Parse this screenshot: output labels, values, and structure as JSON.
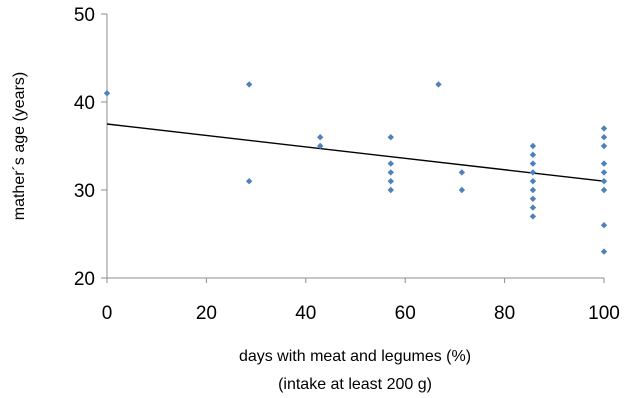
{
  "chart_data": {
    "type": "scatter",
    "title": "",
    "xlabel_line1": "days with meat and legumes (%)",
    "xlabel_line2": "(intake at least 200 g)",
    "ylabel": "mather´s age (years)",
    "xlim": [
      0,
      100
    ],
    "ylim": [
      20,
      50
    ],
    "x_ticks": [
      "0",
      "20",
      "40",
      "60",
      "80",
      "100"
    ],
    "y_ticks": [
      "20",
      "30",
      "40",
      "50"
    ],
    "grid": false,
    "legend": "none",
    "marker_color": "#4F81BD",
    "trendline_color": "#000000",
    "trendline": {
      "x": [
        0,
        100
      ],
      "y": [
        37.5,
        31
      ]
    },
    "points": [
      {
        "x": 0,
        "y": 41
      },
      {
        "x": 28.6,
        "y": 42
      },
      {
        "x": 28.6,
        "y": 31
      },
      {
        "x": 42.9,
        "y": 36
      },
      {
        "x": 42.9,
        "y": 35
      },
      {
        "x": 57.1,
        "y": 36
      },
      {
        "x": 57.1,
        "y": 33
      },
      {
        "x": 57.1,
        "y": 32
      },
      {
        "x": 57.1,
        "y": 31
      },
      {
        "x": 57.1,
        "y": 30
      },
      {
        "x": 66.7,
        "y": 42
      },
      {
        "x": 71.4,
        "y": 32
      },
      {
        "x": 71.4,
        "y": 30
      },
      {
        "x": 85.7,
        "y": 35
      },
      {
        "x": 85.7,
        "y": 34
      },
      {
        "x": 85.7,
        "y": 33
      },
      {
        "x": 85.7,
        "y": 32
      },
      {
        "x": 85.7,
        "y": 31
      },
      {
        "x": 85.7,
        "y": 30
      },
      {
        "x": 85.7,
        "y": 29
      },
      {
        "x": 85.7,
        "y": 28
      },
      {
        "x": 85.7,
        "y": 27
      },
      {
        "x": 100,
        "y": 37
      },
      {
        "x": 100,
        "y": 36
      },
      {
        "x": 100,
        "y": 35
      },
      {
        "x": 100,
        "y": 33
      },
      {
        "x": 100,
        "y": 32
      },
      {
        "x": 100,
        "y": 31
      },
      {
        "x": 100,
        "y": 30
      },
      {
        "x": 100,
        "y": 26
      },
      {
        "x": 100,
        "y": 23
      }
    ]
  }
}
